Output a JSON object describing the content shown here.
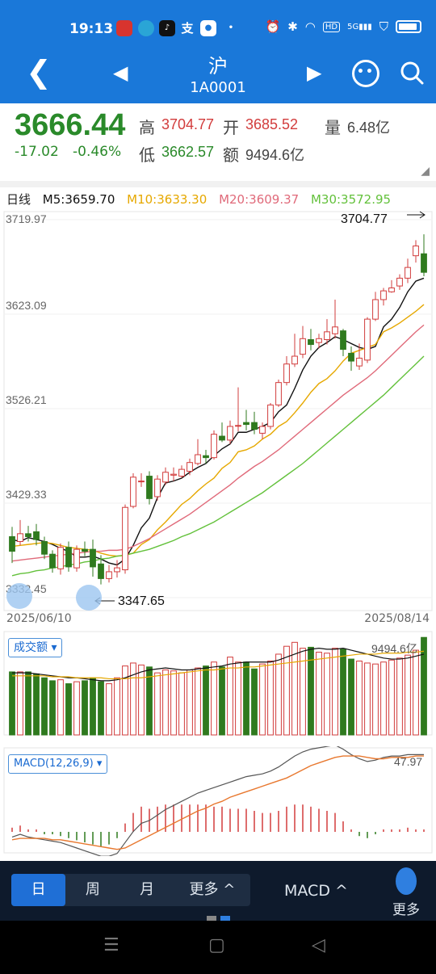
{
  "status": {
    "time": "19:13",
    "icons": [
      "app-icon",
      "app-icon",
      "app-icon",
      "alipay-icon",
      "app-icon",
      "dot-icon"
    ],
    "right_icons": [
      "alarm-icon",
      "bluetooth-icon",
      "wifi-icon",
      "hd-icon",
      "5g-signal-icon",
      "shield-icon",
      "battery-icon"
    ],
    "hd": "HD",
    "fiveg": "5G"
  },
  "header": {
    "title": "沪",
    "subtitle": "1A0001"
  },
  "quote": {
    "price": "3666.44",
    "change": "-17.02",
    "change_pct": "-0.46%",
    "high_label": "高",
    "high": "3704.77",
    "open_label": "开",
    "open": "3685.52",
    "low_label": "低",
    "low": "3662.57",
    "amount_label": "额",
    "amount": "9494.6亿",
    "volume_label": "量",
    "volume": "6.48亿"
  },
  "legend": {
    "period": "日线",
    "ma5": "M5:3659.70",
    "ma10": "M10:3633.30",
    "ma20": "M20:3609.37",
    "ma30": "M30:3572.95"
  },
  "colors": {
    "up": "#d23c3c",
    "down": "#2f7a1e",
    "ma5": "#111111",
    "ma10": "#e6a800",
    "ma20": "#e06a7a",
    "ma30": "#63c13b",
    "header": "#1a78d9"
  },
  "chart_data": [
    {
      "type": "candlestick",
      "x_start": "2025/06/10",
      "x_end": "2025/08/14",
      "y_ticks": [
        "3719.97",
        "3623.09",
        "3526.21",
        "3429.33",
        "3332.45"
      ],
      "ylim": [
        3332.45,
        3719.97
      ],
      "annotations": {
        "max_label": "3704.77",
        "min_label": "3347.65"
      },
      "candles": [
        [
          3395,
          3380,
          3405,
          3368
        ],
        [
          3390,
          3398,
          3412,
          3386
        ],
        [
          3398,
          3395,
          3406,
          3390
        ],
        [
          3400,
          3392,
          3408,
          3386
        ],
        [
          3390,
          3377,
          3395,
          3372
        ],
        [
          3377,
          3363,
          3381,
          3358
        ],
        [
          3362,
          3384,
          3388,
          3356
        ],
        [
          3384,
          3364,
          3390,
          3359
        ],
        [
          3363,
          3382,
          3386,
          3359
        ],
        [
          3382,
          3380,
          3390,
          3375
        ],
        [
          3382,
          3364,
          3392,
          3354
        ],
        [
          3367,
          3352,
          3376,
          3346
        ],
        [
          3352,
          3359,
          3366,
          3348
        ],
        [
          3359,
          3363,
          3371,
          3353
        ],
        [
          3361,
          3425,
          3428,
          3357
        ],
        [
          3426,
          3456,
          3460,
          3424
        ],
        [
          3452,
          3452,
          3460,
          3446
        ],
        [
          3457,
          3434,
          3462,
          3428
        ],
        [
          3436,
          3454,
          3458,
          3432
        ],
        [
          3451,
          3461,
          3466,
          3448
        ],
        [
          3458,
          3459,
          3466,
          3452
        ],
        [
          3457,
          3464,
          3468,
          3455
        ],
        [
          3462,
          3471,
          3475,
          3458
        ],
        [
          3470,
          3479,
          3495,
          3468
        ],
        [
          3478,
          3476,
          3484,
          3470
        ],
        [
          3476,
          3500,
          3504,
          3474
        ],
        [
          3498,
          3494,
          3512,
          3492
        ],
        [
          3494,
          3508,
          3514,
          3490
        ],
        [
          3509,
          3509,
          3548,
          3503
        ],
        [
          3512,
          3510,
          3525,
          3504
        ],
        [
          3512,
          3505,
          3523,
          3500
        ],
        [
          3501,
          3508,
          3512,
          3495
        ],
        [
          3508,
          3530,
          3532,
          3505
        ],
        [
          3530,
          3553,
          3556,
          3528
        ],
        [
          3553,
          3572,
          3580,
          3550
        ],
        [
          3572,
          3580,
          3603,
          3569
        ],
        [
          3582,
          3598,
          3611,
          3578
        ],
        [
          3597,
          3592,
          3608,
          3586
        ],
        [
          3594,
          3598,
          3603,
          3588
        ],
        [
          3597,
          3605,
          3618,
          3592
        ],
        [
          3603,
          3610,
          3638,
          3598
        ],
        [
          3606,
          3587,
          3608,
          3580
        ],
        [
          3583,
          3575,
          3590,
          3565
        ],
        [
          3570,
          3578,
          3593,
          3566
        ],
        [
          3576,
          3618,
          3620,
          3573
        ],
        [
          3618,
          3638,
          3646,
          3616
        ],
        [
          3638,
          3647,
          3650,
          3632
        ],
        [
          3646,
          3650,
          3658,
          3645
        ],
        [
          3652,
          3660,
          3664,
          3648
        ],
        [
          3660,
          3671,
          3680,
          3655
        ],
        [
          3683,
          3693,
          3699,
          3676
        ],
        [
          3685,
          3666,
          3705,
          3662
        ]
      ],
      "series": [
        {
          "name": "M5",
          "values": [
            3392,
            3390,
            3394,
            3392,
            3390,
            3387,
            3383,
            3380,
            3374,
            3374,
            3375,
            3372,
            3368,
            3366,
            3372,
            3386,
            3404,
            3414,
            3435,
            3450,
            3452,
            3455,
            3461,
            3466,
            3470,
            3478,
            3485,
            3490,
            3502,
            3502,
            3505,
            3508,
            3512,
            3523,
            3530,
            3547,
            3566,
            3580,
            3589,
            3594,
            3600,
            3597,
            3593,
            3589,
            3587,
            3590,
            3610,
            3618,
            3630,
            3646,
            3657,
            3660
          ]
        },
        {
          "name": "M10",
          "values": [
            3385,
            3386,
            3387,
            3388,
            3389,
            3388,
            3386,
            3384,
            3383,
            3382,
            3381,
            3378,
            3376,
            3375,
            3376,
            3378,
            3387,
            3392,
            3402,
            3410,
            3419,
            3428,
            3434,
            3442,
            3449,
            3455,
            3465,
            3471,
            3482,
            3484,
            3488,
            3495,
            3500,
            3508,
            3513,
            3522,
            3532,
            3543,
            3552,
            3557,
            3565,
            3575,
            3583,
            3586,
            3589,
            3592,
            3605,
            3609,
            3614,
            3620,
            3626,
            3633
          ]
        },
        {
          "name": "M20",
          "values": [
            3370,
            3371,
            3372,
            3373,
            3374,
            3375,
            3376,
            3377,
            3378,
            3379,
            3380,
            3380,
            3381,
            3381,
            3382,
            3385,
            3389,
            3393,
            3398,
            3403,
            3408,
            3413,
            3418,
            3424,
            3430,
            3436,
            3442,
            3448,
            3455,
            3461,
            3467,
            3472,
            3478,
            3484,
            3491,
            3498,
            3505,
            3512,
            3519,
            3526,
            3533,
            3540,
            3546,
            3552,
            3558,
            3565,
            3573,
            3581,
            3589,
            3597,
            3605,
            3612
          ]
        },
        {
          "name": "M30",
          "values": [
            3355,
            3357,
            3358,
            3360,
            3361,
            3363,
            3364,
            3366,
            3367,
            3369,
            3370,
            3372,
            3373,
            3375,
            3376,
            3378,
            3380,
            3382,
            3385,
            3388,
            3391,
            3395,
            3398,
            3402,
            3406,
            3410,
            3415,
            3420,
            3425,
            3430,
            3435,
            3440,
            3446,
            3452,
            3458,
            3464,
            3470,
            3477,
            3484,
            3491,
            3498,
            3505,
            3512,
            3519,
            3526,
            3533,
            3540,
            3548,
            3556,
            3564,
            3572,
            3580
          ]
        }
      ]
    },
    {
      "type": "bar",
      "label": "成交额",
      "value_label": "9494.6亿",
      "values": [
        64,
        64,
        64,
        62,
        58,
        55,
        56,
        52,
        54,
        55,
        58,
        54,
        52,
        58,
        70,
        73,
        71,
        69,
        63,
        66,
        65,
        63,
        66,
        68,
        70,
        74,
        69,
        79,
        74,
        74,
        67,
        72,
        75,
        82,
        90,
        94,
        88,
        89,
        84,
        83,
        88,
        87,
        77,
        75,
        73,
        72,
        74,
        76,
        78,
        81,
        86,
        99
      ],
      "ma": [
        63,
        63,
        63,
        62,
        61,
        60,
        59,
        58,
        58,
        57,
        56,
        55,
        55,
        56,
        58,
        61,
        64,
        66,
        67,
        68,
        67,
        66,
        66,
        67,
        68,
        69,
        70,
        72,
        73,
        74,
        74,
        74,
        74,
        76,
        79,
        82,
        85,
        87,
        88,
        87,
        87,
        88,
        86,
        84,
        82,
        80,
        78,
        77,
        77,
        78,
        80,
        82
      ],
      "ma2": [
        60,
        60,
        60,
        60,
        60,
        59,
        59,
        59,
        58,
        58,
        58,
        58,
        57,
        57,
        57,
        58,
        58,
        59,
        60,
        61,
        62,
        63,
        64,
        65,
        66,
        66,
        67,
        68,
        68,
        69,
        69,
        70,
        71,
        72,
        73,
        74,
        75,
        76,
        77,
        78,
        79,
        80,
        81,
        82,
        82,
        82,
        83,
        83,
        83,
        84,
        84,
        85
      ]
    },
    {
      "type": "line",
      "label": "MACD(12,26,9)",
      "value_label": "47.97",
      "dif": [
        -12,
        -10,
        -12,
        -13,
        -14,
        -15,
        -16,
        -18,
        -20,
        -22,
        -24,
        -26,
        -26,
        -24,
        -16,
        -8,
        -2,
        0,
        4,
        8,
        11,
        14,
        17,
        20,
        22,
        24,
        26,
        28,
        30,
        32,
        33,
        34,
        36,
        39,
        43,
        47,
        50,
        52,
        53,
        54,
        55,
        52,
        48,
        45,
        43,
        44,
        46,
        47,
        47,
        48,
        48,
        48
      ],
      "dea": [
        -14,
        -13,
        -13,
        -13,
        -13,
        -14,
        -14,
        -15,
        -16,
        -17,
        -18,
        -19,
        -20,
        -21,
        -20,
        -17,
        -14,
        -11,
        -8,
        -5,
        -2,
        1,
        4,
        7,
        9,
        12,
        14,
        17,
        19,
        21,
        23,
        25,
        27,
        29,
        31,
        34,
        37,
        40,
        42,
        44,
        46,
        47,
        47,
        47,
        46,
        45,
        45,
        46,
        46,
        46,
        47,
        47
      ]
    }
  ],
  "volume_btn": "成交额",
  "macd_btn": "MACD(12,26,9)",
  "bottom": {
    "periods": [
      "日",
      "周",
      "月",
      "更多 ^"
    ],
    "indicator": "MACD ^",
    "more": "更多"
  }
}
